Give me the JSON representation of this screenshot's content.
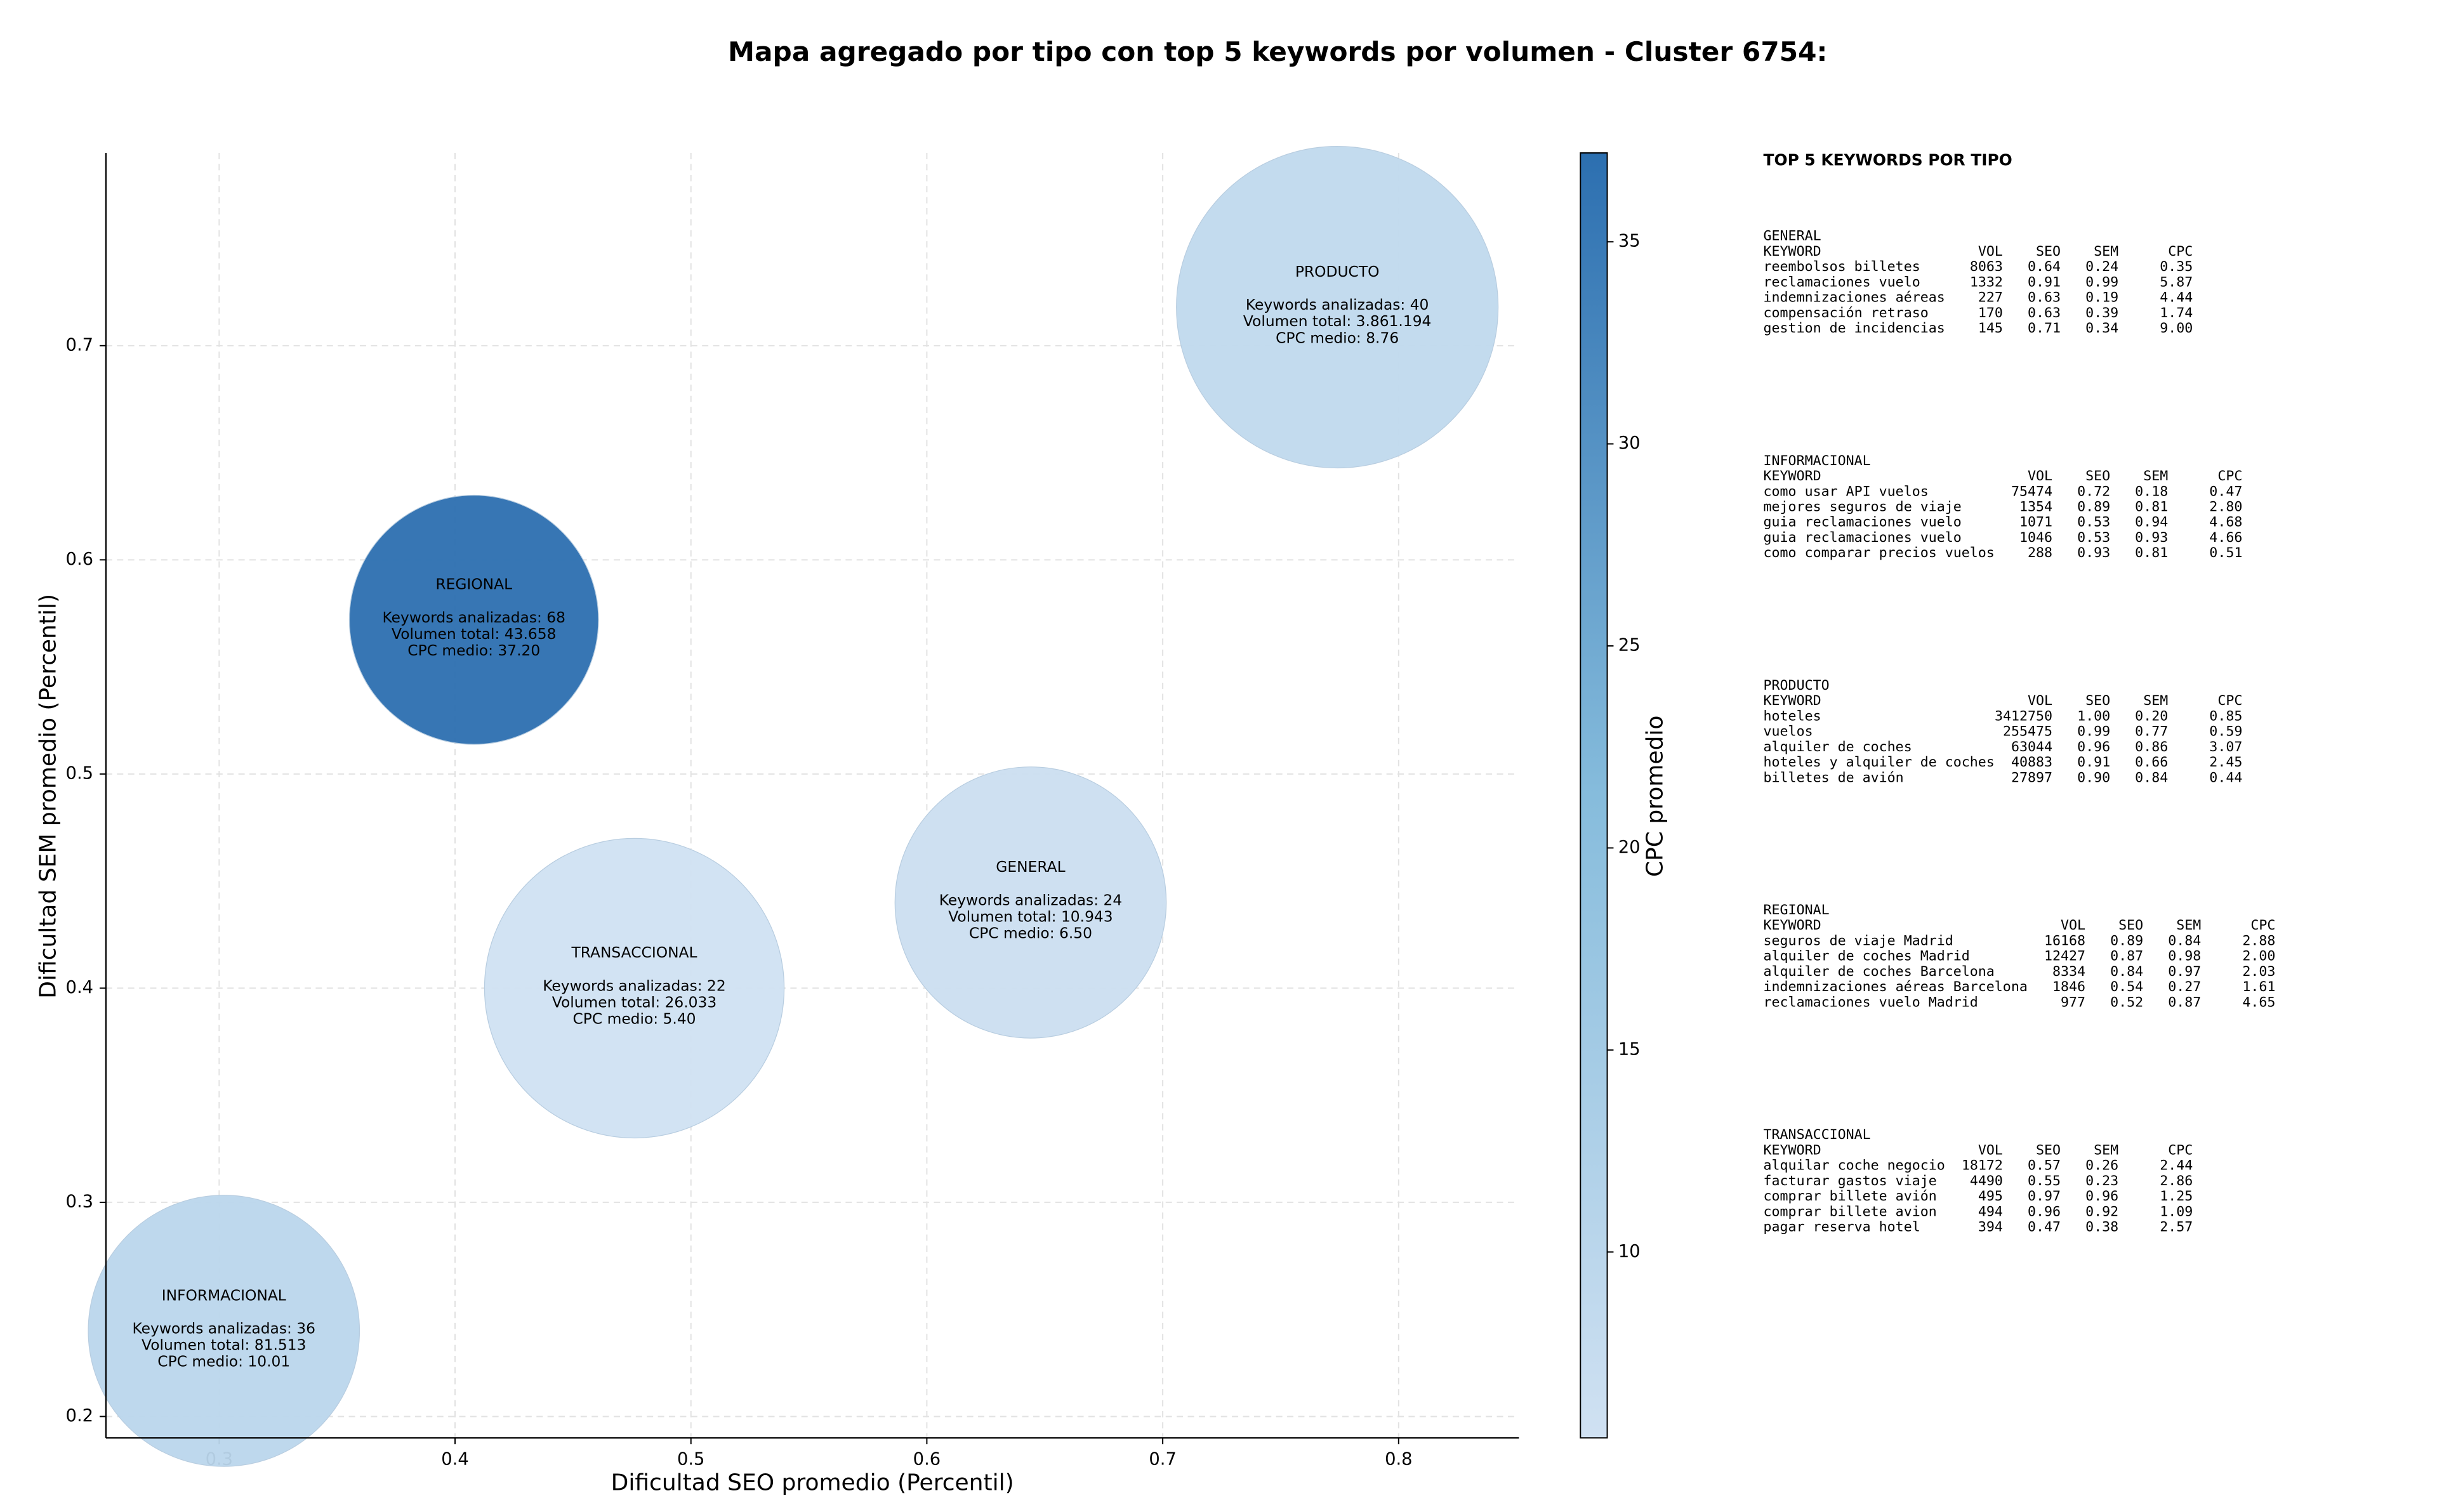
{
  "chart_data": {
    "type": "bubble",
    "title": "Mapa agregado por tipo con top 5 keywords por volumen - Cluster 6754:",
    "x_label": "Dificultad SEO promedio (Percentil)",
    "y_label": "Dificultad SEM promedio (Percentil)",
    "xlim": [
      0.252,
      0.851
    ],
    "ylim": [
      0.19,
      0.79
    ],
    "xticks": [
      0.3,
      0.4,
      0.5,
      0.6,
      0.7,
      0.8
    ],
    "yticks": [
      0.2,
      0.3,
      0.4,
      0.5,
      0.6,
      0.7
    ],
    "grid": true,
    "colorbar_label": "CPC promedio",
    "clim": [
      5.4,
      37.2
    ],
    "cticks": [
      10,
      15,
      20,
      25,
      30,
      35
    ],
    "colormap": [
      "#d0e1f2",
      "#86bcdc",
      "#2c6fb0"
    ],
    "points": [
      {
        "name": "GENERAL",
        "x": 0.644,
        "y": 0.44,
        "cpc": 6.5,
        "labels": [
          "Keywords analizadas: 24",
          "Volumen total: 10.943",
          "CPC medio: 6.50"
        ]
      },
      {
        "name": "INFORMACIONAL",
        "x": 0.302,
        "y": 0.24,
        "cpc": 10.01,
        "labels": [
          "Keywords analizadas: 36",
          "Volumen total: 81.513",
          "CPC medio: 10.01"
        ]
      },
      {
        "name": "PRODUCTO",
        "x": 0.774,
        "y": 0.718,
        "cpc": 8.76,
        "labels": [
          "Keywords analizadas: 40",
          "Volumen total: 3.861.194",
          "CPC medio: 8.76"
        ]
      },
      {
        "name": "REGIONAL",
        "x": 0.408,
        "y": 0.572,
        "cpc": 37.2,
        "labels": [
          "Keywords analizadas: 68",
          "Volumen total: 43.658",
          "CPC medio: 37.20"
        ]
      },
      {
        "name": "TRANSACCIONAL",
        "x": 0.476,
        "y": 0.4,
        "cpc": 5.4,
        "labels": [
          "Keywords analizadas: 22",
          "Volumen total: 26.033",
          "CPC medio: 5.40"
        ]
      }
    ]
  },
  "panel": {
    "title": "TOP 5 KEYWORDS POR TIPO",
    "groups": [
      {
        "name": "GENERAL",
        "header": [
          "KEYWORD",
          "VOL",
          "SEO",
          "SEM",
          "CPC"
        ],
        "rows": [
          [
            "reembolsos billetes",
            "8063",
            "0.64",
            "0.24",
            "0.35"
          ],
          [
            "reclamaciones vuelo",
            "1332",
            "0.91",
            "0.99",
            "5.87"
          ],
          [
            "indemnizaciones aéreas",
            "227",
            "0.63",
            "0.19",
            "4.44"
          ],
          [
            "compensación retraso",
            "170",
            "0.63",
            "0.39",
            "1.74"
          ],
          [
            "gestion de incidencias",
            "145",
            "0.71",
            "0.34",
            "9.00"
          ]
        ]
      },
      {
        "name": "INFORMACIONAL",
        "header": [
          "KEYWORD",
          "VOL",
          "SEO",
          "SEM",
          "CPC"
        ],
        "rows": [
          [
            "como usar API vuelos",
            "75474",
            "0.72",
            "0.18",
            "0.47"
          ],
          [
            "mejores seguros de viaje",
            "1354",
            "0.89",
            "0.81",
            "2.80"
          ],
          [
            "guia reclamaciones vuelo",
            "1071",
            "0.53",
            "0.94",
            "4.68"
          ],
          [
            "guia reclamaciones vuelo",
            "1046",
            "0.53",
            "0.93",
            "4.66"
          ],
          [
            "como comparar precios vuelos",
            "288",
            "0.93",
            "0.81",
            "0.51"
          ]
        ]
      },
      {
        "name": "PRODUCTO",
        "header": [
          "KEYWORD",
          "VOL",
          "SEO",
          "SEM",
          "CPC"
        ],
        "rows": [
          [
            "hoteles",
            "3412750",
            "1.00",
            "0.20",
            "0.85"
          ],
          [
            "vuelos",
            "255475",
            "0.99",
            "0.77",
            "0.59"
          ],
          [
            "alquiler de coches",
            "63044",
            "0.96",
            "0.86",
            "3.07"
          ],
          [
            "hoteles y alquiler de coches",
            "40883",
            "0.91",
            "0.66",
            "2.45"
          ],
          [
            "billetes de avión",
            "27897",
            "0.90",
            "0.84",
            "0.44"
          ]
        ]
      },
      {
        "name": "REGIONAL",
        "header": [
          "KEYWORD",
          "VOL",
          "SEO",
          "SEM",
          "CPC"
        ],
        "rows": [
          [
            "seguros de viaje Madrid",
            "16168",
            "0.89",
            "0.84",
            "2.88"
          ],
          [
            "alquiler de coches Madrid",
            "12427",
            "0.87",
            "0.98",
            "2.00"
          ],
          [
            "alquiler de coches Barcelona",
            "8334",
            "0.84",
            "0.97",
            "2.03"
          ],
          [
            "indemnizaciones aéreas Barcelona",
            "1846",
            "0.54",
            "0.27",
            "1.61"
          ],
          [
            "reclamaciones vuelo Madrid",
            "977",
            "0.52",
            "0.87",
            "4.65"
          ]
        ]
      },
      {
        "name": "TRANSACCIONAL",
        "header": [
          "KEYWORD",
          "VOL",
          "SEO",
          "SEM",
          "CPC"
        ],
        "rows": [
          [
            "alquilar coche negocio",
            "18172",
            "0.57",
            "0.26",
            "2.44"
          ],
          [
            "facturar gastos viaje",
            "4490",
            "0.55",
            "0.23",
            "2.86"
          ],
          [
            "comprar billete avión",
            "495",
            "0.97",
            "0.96",
            "1.25"
          ],
          [
            "comprar billete avion",
            "494",
            "0.96",
            "0.92",
            "1.09"
          ],
          [
            "pagar reserva hotel",
            "394",
            "0.47",
            "0.38",
            "2.57"
          ]
        ]
      }
    ]
  }
}
